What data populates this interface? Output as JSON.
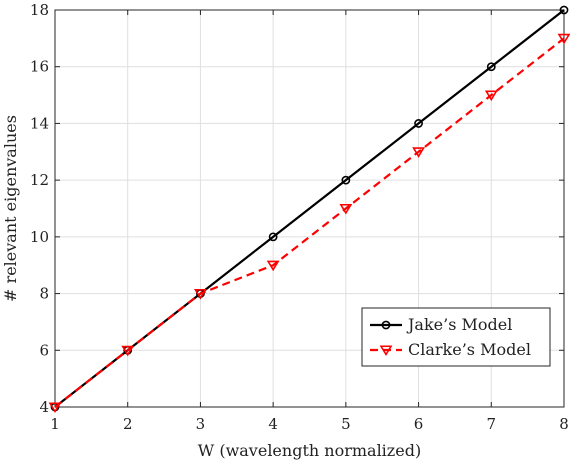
{
  "chart_data": {
    "type": "line",
    "xlabel": "W (wavelength normalized)",
    "ylabel": "# relevant eigenvalues",
    "x": [
      1,
      2,
      3,
      4,
      5,
      6,
      7,
      8
    ],
    "xlim": [
      1,
      8
    ],
    "ylim": [
      4,
      18
    ],
    "xticks": [
      1,
      2,
      3,
      4,
      5,
      6,
      7,
      8
    ],
    "yticks": [
      4,
      6,
      8,
      10,
      12,
      14,
      16,
      18
    ],
    "grid": true,
    "legend_position": "bottom-right",
    "series": [
      {
        "name": "Jake’s Model",
        "values": [
          4,
          6,
          8,
          10,
          12,
          14,
          16,
          18
        ],
        "color": "#000000",
        "line_style": "solid",
        "marker": "circle"
      },
      {
        "name": "Clarke’s Model",
        "values": [
          4,
          6,
          8,
          9,
          11,
          13,
          15,
          17
        ],
        "color": "#ff0000",
        "line_style": "dashed",
        "marker": "triangle-down"
      }
    ]
  }
}
